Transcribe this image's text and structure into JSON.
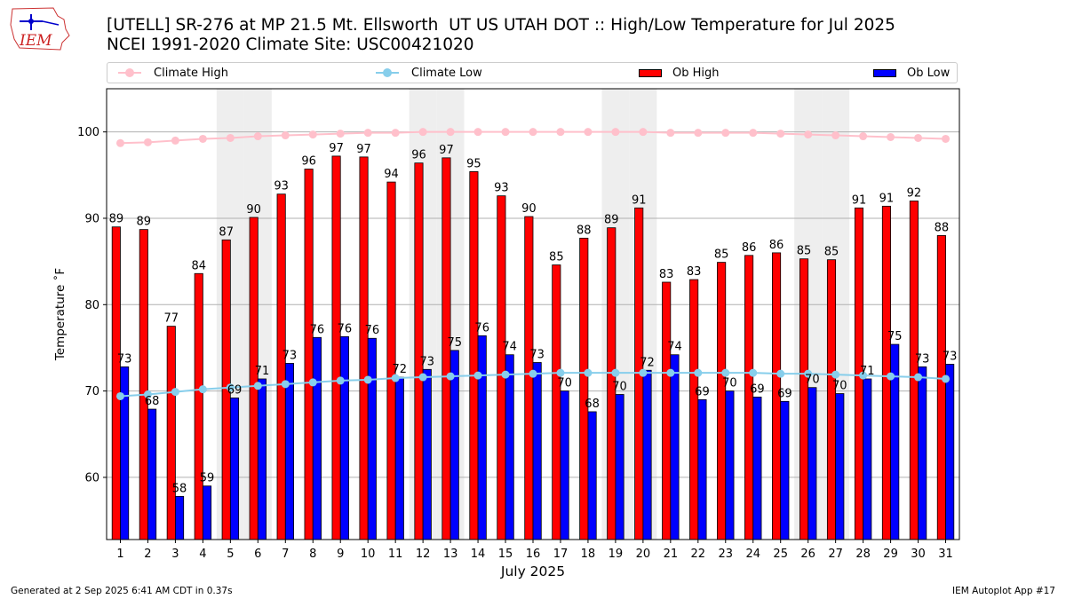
{
  "header": {
    "title_line1": "[UTELL] SR-276 at MP 21.5 Mt. Ellsworth  UT US UTAH DOT :: High/Low Temperature for Jul 2025",
    "title_line2": "NCEI 1991-2020 Climate Site: USC00421020",
    "logo_text": "IEM"
  },
  "legend": {
    "climate_high": "Climate High",
    "climate_low": "Climate Low",
    "ob_high": "Ob High",
    "ob_low": "Ob Low"
  },
  "colors": {
    "ob_high": "#ff0000",
    "ob_low": "#0000ff",
    "climate_high": "#ffc0cb",
    "climate_low": "#87ceeb",
    "weekend_shade": "#eeeeee",
    "grid": "#b0b0b0"
  },
  "chart_data": {
    "type": "bar",
    "xlabel": "July 2025",
    "ylabel": "Temperature ˚F",
    "ylim": [
      52.8,
      105
    ],
    "yticks": [
      60,
      70,
      80,
      90,
      100
    ],
    "grid": "horizontal",
    "legend_position": "top",
    "categories": [
      "1",
      "2",
      "3",
      "4",
      "5",
      "6",
      "7",
      "8",
      "9",
      "10",
      "11",
      "12",
      "13",
      "14",
      "15",
      "16",
      "17",
      "18",
      "19",
      "20",
      "21",
      "22",
      "23",
      "24",
      "25",
      "26",
      "27",
      "28",
      "29",
      "30",
      "31"
    ],
    "shaded_days": [
      5,
      6,
      12,
      13,
      19,
      20,
      26,
      27
    ],
    "series": [
      {
        "name": "Ob High",
        "kind": "bar",
        "values": [
          89.0,
          88.7,
          77.5,
          83.6,
          87.5,
          90.1,
          92.8,
          95.7,
          97.2,
          97.1,
          94.2,
          96.4,
          97.0,
          95.4,
          92.6,
          90.2,
          84.6,
          87.7,
          88.9,
          91.2,
          82.6,
          82.9,
          84.9,
          85.7,
          86.0,
          85.3,
          85.2,
          91.2,
          91.4,
          92.0,
          88.0
        ],
        "labels": [
          "89",
          "89",
          "77",
          "84",
          "87",
          "90",
          "93",
          "96",
          "97",
          "97",
          "94",
          "96",
          "97",
          "95",
          "93",
          "90",
          "85",
          "88",
          "89",
          "91",
          "83",
          "83",
          "85",
          "86",
          "86",
          "85",
          "85",
          "91",
          "91",
          "92",
          "88"
        ]
      },
      {
        "name": "Ob Low",
        "kind": "bar",
        "values": [
          72.8,
          67.9,
          57.8,
          59.0,
          69.2,
          71.4,
          73.2,
          76.2,
          76.3,
          76.1,
          71.6,
          72.5,
          74.7,
          76.4,
          74.2,
          73.3,
          70.0,
          67.6,
          69.6,
          72.4,
          74.2,
          69.0,
          70.0,
          69.3,
          68.8,
          70.4,
          69.7,
          71.4,
          75.4,
          72.8,
          73.1
        ],
        "labels": [
          "73",
          "68",
          "58",
          "59",
          "69",
          "71",
          "73",
          "76",
          "76",
          "76",
          "72",
          "73",
          "75",
          "76",
          "74",
          "73",
          "70",
          "68",
          "70",
          "72",
          "74",
          "69",
          "70",
          "69",
          "69",
          "70",
          "70",
          "71",
          "75",
          "73",
          "73"
        ]
      },
      {
        "name": "Climate High",
        "kind": "line",
        "values": [
          98.7,
          98.8,
          99.0,
          99.2,
          99.3,
          99.5,
          99.6,
          99.7,
          99.8,
          99.9,
          99.9,
          100.0,
          100.0,
          100.0,
          100.0,
          100.0,
          100.0,
          100.0,
          100.0,
          100.0,
          99.9,
          99.9,
          99.9,
          99.9,
          99.8,
          99.7,
          99.6,
          99.5,
          99.4,
          99.3,
          99.2
        ]
      },
      {
        "name": "Climate Low",
        "kind": "line",
        "values": [
          69.4,
          69.6,
          69.9,
          70.2,
          70.4,
          70.6,
          70.8,
          71.0,
          71.2,
          71.3,
          71.5,
          71.6,
          71.7,
          71.8,
          71.9,
          72.0,
          72.1,
          72.1,
          72.1,
          72.1,
          72.1,
          72.1,
          72.1,
          72.1,
          72.0,
          72.0,
          71.9,
          71.8,
          71.7,
          71.6,
          71.4
        ]
      }
    ]
  },
  "footer": {
    "generated": "Generated at 2 Sep 2025 6:41 AM CDT in 0.37s",
    "app": "IEM Autoplot App #17"
  }
}
